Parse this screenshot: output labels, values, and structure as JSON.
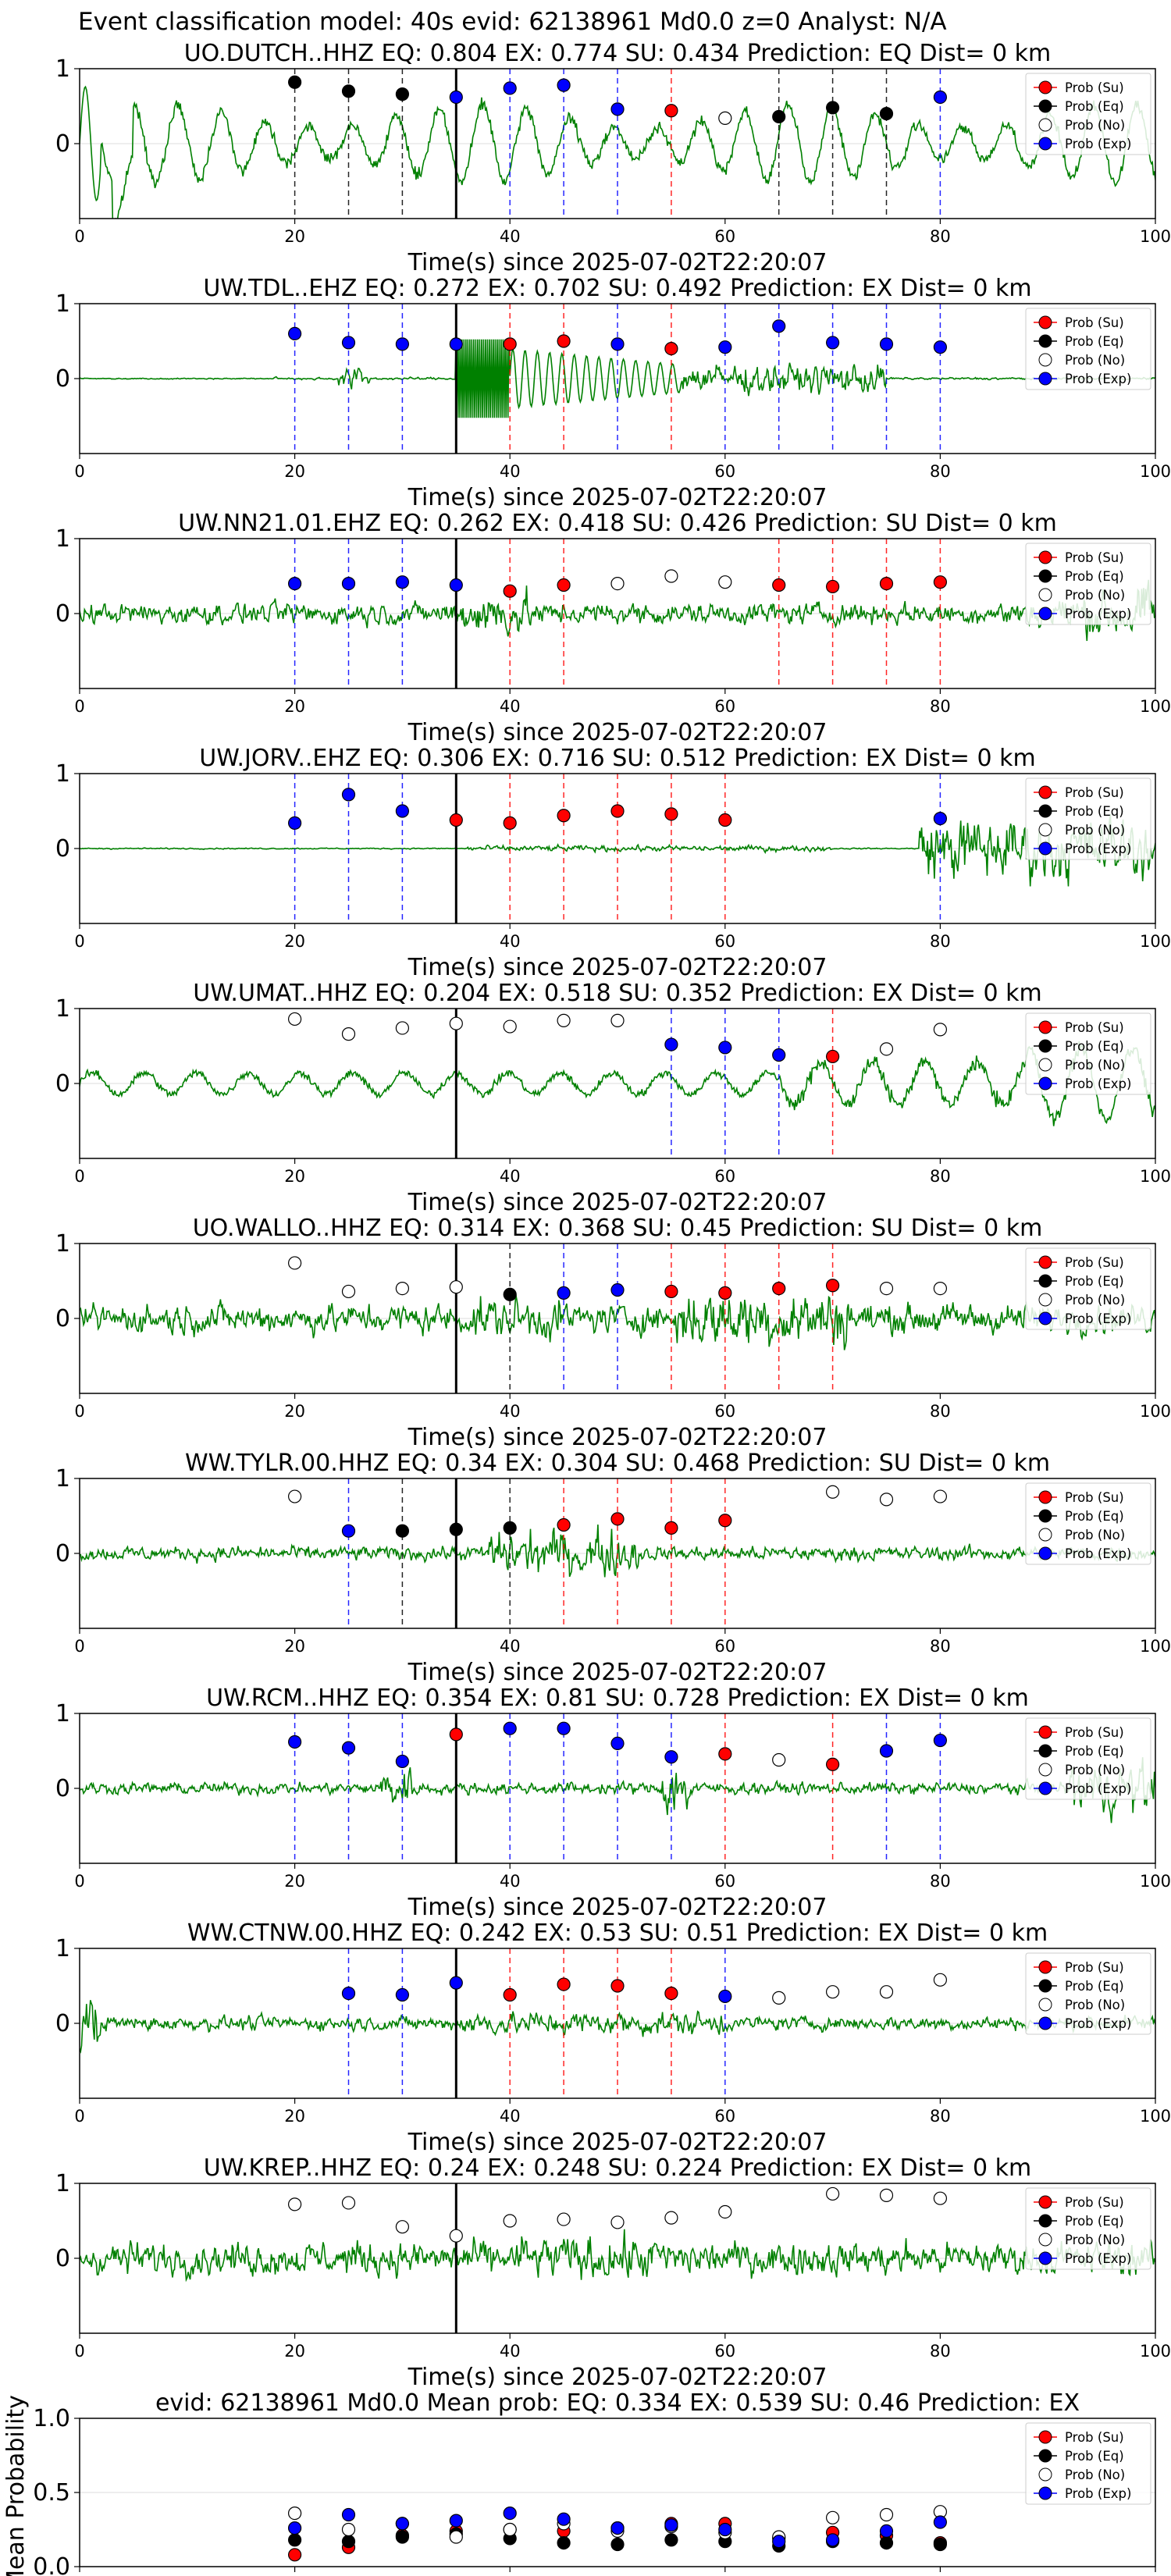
{
  "suptitle": "Event classification model: 40s evid: 62138961 Md0.0 z=0 Analyst: N/A",
  "colors": {
    "waveform": "#008000",
    "su": "#ff0000",
    "eq": "#000000",
    "no": "#ffffff",
    "exp": "#0000ff",
    "pick_line": "#000000",
    "grid": "#dddddd"
  },
  "legend_labels": [
    "Prob (Su)",
    "Prob (Eq)",
    "Prob (No)",
    "Prob (Exp)"
  ],
  "chart_data": [
    {
      "type": "line",
      "title": "UO.DUTCH..HHZ   EQ: 0.804  EX: 0.774  SU: 0.434   Prediction: EQ    Dist= 0 km",
      "xlabel": "Time(s) since 2025-07-02T22:20:07",
      "ylabel": "",
      "xlim": [
        0,
        100
      ],
      "ylim": [
        -1,
        1
      ],
      "xticks": [
        "0",
        "20",
        "40",
        "60",
        "80",
        "100"
      ],
      "yticks": [
        "1",
        "0"
      ],
      "pick_time": 35,
      "waveform_style": "low",
      "legend_position": "upper right",
      "points": [
        {
          "x": 20,
          "y": 0.82,
          "class": "eq"
        },
        {
          "x": 25,
          "y": 0.7,
          "class": "eq"
        },
        {
          "x": 30,
          "y": 0.66,
          "class": "eq"
        },
        {
          "x": 35,
          "y": 0.62,
          "class": "exp"
        },
        {
          "x": 40,
          "y": 0.74,
          "class": "exp"
        },
        {
          "x": 45,
          "y": 0.78,
          "class": "exp"
        },
        {
          "x": 50,
          "y": 0.46,
          "class": "exp"
        },
        {
          "x": 55,
          "y": 0.44,
          "class": "su"
        },
        {
          "x": 60,
          "y": 0.34,
          "class": "no"
        },
        {
          "x": 65,
          "y": 0.36,
          "class": "eq"
        },
        {
          "x": 70,
          "y": 0.48,
          "class": "eq"
        },
        {
          "x": 75,
          "y": 0.4,
          "class": "eq"
        },
        {
          "x": 80,
          "y": 0.62,
          "class": "exp"
        }
      ]
    },
    {
      "type": "line",
      "title": "UW.TDL..EHZ   EQ: 0.272  EX: 0.702  SU: 0.492   Prediction: EX    Dist= 0 km",
      "xlabel": "Time(s) since 2025-07-02T22:20:07",
      "ylabel": "",
      "xlim": [
        0,
        100
      ],
      "ylim": [
        -1,
        1
      ],
      "xticks": [
        "0",
        "20",
        "40",
        "60",
        "80",
        "100"
      ],
      "yticks": [
        "1",
        "0"
      ],
      "pick_time": 35,
      "waveform_style": "event",
      "legend_position": "upper right",
      "points": [
        {
          "x": 20,
          "y": 0.6,
          "class": "exp"
        },
        {
          "x": 25,
          "y": 0.48,
          "class": "exp"
        },
        {
          "x": 30,
          "y": 0.46,
          "class": "exp"
        },
        {
          "x": 35,
          "y": 0.46,
          "class": "exp"
        },
        {
          "x": 40,
          "y": 0.46,
          "class": "su"
        },
        {
          "x": 45,
          "y": 0.5,
          "class": "su"
        },
        {
          "x": 50,
          "y": 0.46,
          "class": "exp"
        },
        {
          "x": 55,
          "y": 0.4,
          "class": "su"
        },
        {
          "x": 60,
          "y": 0.42,
          "class": "exp"
        },
        {
          "x": 65,
          "y": 0.7,
          "class": "exp"
        },
        {
          "x": 70,
          "y": 0.48,
          "class": "exp"
        },
        {
          "x": 75,
          "y": 0.46,
          "class": "exp"
        },
        {
          "x": 80,
          "y": 0.42,
          "class": "exp"
        }
      ]
    },
    {
      "type": "line",
      "title": "UW.NN21.01.EHZ   EQ: 0.262  EX: 0.418  SU: 0.426   Prediction: SU    Dist= 0 km",
      "xlabel": "Time(s) since 2025-07-02T22:20:07",
      "ylabel": "",
      "xlim": [
        0,
        100
      ],
      "ylim": [
        -1,
        1
      ],
      "xticks": [
        "0",
        "20",
        "40",
        "60",
        "80",
        "100"
      ],
      "yticks": [
        "1",
        "0"
      ],
      "pick_time": 35,
      "waveform_style": "noise",
      "legend_position": "upper right",
      "points": [
        {
          "x": 20,
          "y": 0.4,
          "class": "exp"
        },
        {
          "x": 25,
          "y": 0.4,
          "class": "exp"
        },
        {
          "x": 30,
          "y": 0.42,
          "class": "exp"
        },
        {
          "x": 35,
          "y": 0.38,
          "class": "exp"
        },
        {
          "x": 40,
          "y": 0.3,
          "class": "su"
        },
        {
          "x": 45,
          "y": 0.38,
          "class": "su"
        },
        {
          "x": 50,
          "y": 0.4,
          "class": "no"
        },
        {
          "x": 55,
          "y": 0.5,
          "class": "no"
        },
        {
          "x": 60,
          "y": 0.42,
          "class": "no"
        },
        {
          "x": 65,
          "y": 0.38,
          "class": "su"
        },
        {
          "x": 70,
          "y": 0.36,
          "class": "su"
        },
        {
          "x": 75,
          "y": 0.4,
          "class": "su"
        },
        {
          "x": 80,
          "y": 0.42,
          "class": "su"
        }
      ]
    },
    {
      "type": "line",
      "title": "UW.JORV..EHZ   EQ: 0.306  EX: 0.716  SU: 0.512   Prediction: EX    Dist= 0 km",
      "xlabel": "Time(s) since 2025-07-02T22:20:07",
      "ylabel": "",
      "xlim": [
        0,
        100
      ],
      "ylim": [
        -1,
        1
      ],
      "xticks": [
        "0",
        "20",
        "40",
        "60",
        "80",
        "100"
      ],
      "yticks": [
        "1",
        "0"
      ],
      "pick_time": 35,
      "waveform_style": "quiet_burst",
      "legend_position": "upper right",
      "points": [
        {
          "x": 20,
          "y": 0.34,
          "class": "exp"
        },
        {
          "x": 25,
          "y": 0.72,
          "class": "exp"
        },
        {
          "x": 30,
          "y": 0.5,
          "class": "exp"
        },
        {
          "x": 35,
          "y": 0.38,
          "class": "su"
        },
        {
          "x": 40,
          "y": 0.34,
          "class": "su"
        },
        {
          "x": 45,
          "y": 0.44,
          "class": "su"
        },
        {
          "x": 50,
          "y": 0.5,
          "class": "su"
        },
        {
          "x": 55,
          "y": 0.46,
          "class": "su"
        },
        {
          "x": 60,
          "y": 0.38,
          "class": "su"
        },
        {
          "x": 80,
          "y": 0.4,
          "class": "exp"
        }
      ]
    },
    {
      "type": "line",
      "title": "UW.UMAT..HHZ   EQ: 0.204  EX: 0.518  SU: 0.352   Prediction: EX    Dist= 0 km",
      "xlabel": "Time(s) since 2025-07-02T22:20:07",
      "ylabel": "",
      "xlim": [
        0,
        100
      ],
      "ylim": [
        -1,
        1
      ],
      "xticks": [
        "0",
        "20",
        "40",
        "60",
        "80",
        "100"
      ],
      "yticks": [
        "1",
        "0"
      ],
      "pick_time": 35,
      "waveform_style": "wavy",
      "legend_position": "upper right",
      "points": [
        {
          "x": 20,
          "y": 0.86,
          "class": "no"
        },
        {
          "x": 25,
          "y": 0.66,
          "class": "no"
        },
        {
          "x": 30,
          "y": 0.74,
          "class": "no"
        },
        {
          "x": 35,
          "y": 0.8,
          "class": "no"
        },
        {
          "x": 40,
          "y": 0.76,
          "class": "no"
        },
        {
          "x": 45,
          "y": 0.84,
          "class": "no"
        },
        {
          "x": 50,
          "y": 0.84,
          "class": "no"
        },
        {
          "x": 55,
          "y": 0.52,
          "class": "exp"
        },
        {
          "x": 60,
          "y": 0.48,
          "class": "exp"
        },
        {
          "x": 65,
          "y": 0.38,
          "class": "exp"
        },
        {
          "x": 70,
          "y": 0.36,
          "class": "su"
        },
        {
          "x": 75,
          "y": 0.46,
          "class": "no"
        },
        {
          "x": 80,
          "y": 0.72,
          "class": "no"
        }
      ]
    },
    {
      "type": "line",
      "title": "UO.WALLO..HHZ   EQ: 0.314  EX: 0.368  SU: 0.45   Prediction: SU    Dist= 0 km",
      "xlabel": "Time(s) since 2025-07-02T22:20:07",
      "ylabel": "",
      "xlim": [
        0,
        100
      ],
      "ylim": [
        -1,
        1
      ],
      "xticks": [
        "0",
        "20",
        "40",
        "60",
        "80",
        "100"
      ],
      "yticks": [
        "1",
        "0"
      ],
      "pick_time": 35,
      "waveform_style": "noisy_mid",
      "legend_position": "upper right",
      "points": [
        {
          "x": 20,
          "y": 0.74,
          "class": "no"
        },
        {
          "x": 25,
          "y": 0.36,
          "class": "no"
        },
        {
          "x": 30,
          "y": 0.4,
          "class": "no"
        },
        {
          "x": 35,
          "y": 0.42,
          "class": "no"
        },
        {
          "x": 40,
          "y": 0.32,
          "class": "eq"
        },
        {
          "x": 45,
          "y": 0.34,
          "class": "exp"
        },
        {
          "x": 50,
          "y": 0.38,
          "class": "exp"
        },
        {
          "x": 55,
          "y": 0.36,
          "class": "su"
        },
        {
          "x": 60,
          "y": 0.34,
          "class": "su"
        },
        {
          "x": 65,
          "y": 0.4,
          "class": "su"
        },
        {
          "x": 70,
          "y": 0.44,
          "class": "su"
        },
        {
          "x": 75,
          "y": 0.4,
          "class": "no"
        },
        {
          "x": 80,
          "y": 0.4,
          "class": "no"
        }
      ]
    },
    {
      "type": "line",
      "title": "WW.TYLR.00.HHZ   EQ: 0.34  EX: 0.304  SU: 0.468   Prediction: SU    Dist= 0 km",
      "xlabel": "Time(s) since 2025-07-02T22:20:07",
      "ylabel": "",
      "xlim": [
        0,
        100
      ],
      "ylim": [
        -1,
        1
      ],
      "xticks": [
        "0",
        "20",
        "40",
        "60",
        "80",
        "100"
      ],
      "yticks": [
        "1",
        "0"
      ],
      "pick_time": 35,
      "waveform_style": "noise_event",
      "legend_position": "upper right",
      "points": [
        {
          "x": 20,
          "y": 0.76,
          "class": "no"
        },
        {
          "x": 25,
          "y": 0.3,
          "class": "exp"
        },
        {
          "x": 30,
          "y": 0.3,
          "class": "eq"
        },
        {
          "x": 35,
          "y": 0.32,
          "class": "eq"
        },
        {
          "x": 40,
          "y": 0.34,
          "class": "eq"
        },
        {
          "x": 45,
          "y": 0.38,
          "class": "su"
        },
        {
          "x": 50,
          "y": 0.46,
          "class": "su"
        },
        {
          "x": 55,
          "y": 0.34,
          "class": "su"
        },
        {
          "x": 60,
          "y": 0.44,
          "class": "su"
        },
        {
          "x": 70,
          "y": 0.82,
          "class": "no"
        },
        {
          "x": 75,
          "y": 0.72,
          "class": "no"
        },
        {
          "x": 80,
          "y": 0.76,
          "class": "no"
        }
      ]
    },
    {
      "type": "line",
      "title": "UW.RCM..HHZ   EQ: 0.354  EX: 0.81  SU: 0.728   Prediction: EX    Dist= 0 km",
      "xlabel": "Time(s) since 2025-07-02T22:20:07",
      "ylabel": "",
      "xlim": [
        0,
        100
      ],
      "ylim": [
        -1,
        1
      ],
      "xticks": [
        "0",
        "20",
        "40",
        "60",
        "80",
        "100"
      ],
      "yticks": [
        "1",
        "0"
      ],
      "pick_time": 35,
      "waveform_style": "noise_spikes",
      "legend_position": "upper right",
      "points": [
        {
          "x": 20,
          "y": 0.62,
          "class": "exp"
        },
        {
          "x": 25,
          "y": 0.54,
          "class": "exp"
        },
        {
          "x": 30,
          "y": 0.36,
          "class": "exp"
        },
        {
          "x": 35,
          "y": 0.72,
          "class": "su"
        },
        {
          "x": 40,
          "y": 0.8,
          "class": "exp"
        },
        {
          "x": 45,
          "y": 0.8,
          "class": "exp"
        },
        {
          "x": 50,
          "y": 0.6,
          "class": "exp"
        },
        {
          "x": 55,
          "y": 0.42,
          "class": "exp"
        },
        {
          "x": 60,
          "y": 0.46,
          "class": "su"
        },
        {
          "x": 65,
          "y": 0.38,
          "class": "no"
        },
        {
          "x": 70,
          "y": 0.32,
          "class": "su"
        },
        {
          "x": 75,
          "y": 0.5,
          "class": "exp"
        },
        {
          "x": 80,
          "y": 0.64,
          "class": "exp"
        }
      ]
    },
    {
      "type": "line",
      "title": "WW.CTNW.00.HHZ   EQ: 0.242  EX: 0.53  SU: 0.51   Prediction: EX    Dist= 0 km",
      "xlabel": "Time(s) since 2025-07-02T22:20:07",
      "ylabel": "",
      "xlim": [
        0,
        100
      ],
      "ylim": [
        -1,
        1
      ],
      "xticks": [
        "0",
        "20",
        "40",
        "60",
        "80",
        "100"
      ],
      "yticks": [
        "1",
        "0"
      ],
      "pick_time": 35,
      "waveform_style": "noise_small",
      "legend_position": "upper right",
      "points": [
        {
          "x": 25,
          "y": 0.4,
          "class": "exp"
        },
        {
          "x": 30,
          "y": 0.38,
          "class": "exp"
        },
        {
          "x": 35,
          "y": 0.54,
          "class": "exp"
        },
        {
          "x": 40,
          "y": 0.38,
          "class": "su"
        },
        {
          "x": 45,
          "y": 0.52,
          "class": "su"
        },
        {
          "x": 50,
          "y": 0.5,
          "class": "su"
        },
        {
          "x": 55,
          "y": 0.4,
          "class": "su"
        },
        {
          "x": 60,
          "y": 0.36,
          "class": "exp"
        },
        {
          "x": 65,
          "y": 0.34,
          "class": "no"
        },
        {
          "x": 70,
          "y": 0.42,
          "class": "no"
        },
        {
          "x": 75,
          "y": 0.42,
          "class": "no"
        },
        {
          "x": 80,
          "y": 0.58,
          "class": "no"
        }
      ]
    },
    {
      "type": "line",
      "title": "UW.KREP..HHZ   EQ: 0.24  EX: 0.248  SU: 0.224   Prediction: EX    Dist= 0 km",
      "xlabel": "Time(s) since 2025-07-02T22:20:07",
      "ylabel": "",
      "xlim": [
        0,
        100
      ],
      "ylim": [
        -1,
        1
      ],
      "xticks": [
        "0",
        "20",
        "40",
        "60",
        "80",
        "100"
      ],
      "yticks": [
        "1",
        "0"
      ],
      "pick_time": 35,
      "waveform_style": "noise_large",
      "legend_position": "upper right",
      "points": [
        {
          "x": 20,
          "y": 0.72,
          "class": "no"
        },
        {
          "x": 25,
          "y": 0.74,
          "class": "no"
        },
        {
          "x": 30,
          "y": 0.42,
          "class": "no"
        },
        {
          "x": 35,
          "y": 0.3,
          "class": "no"
        },
        {
          "x": 40,
          "y": 0.5,
          "class": "no"
        },
        {
          "x": 45,
          "y": 0.52,
          "class": "no"
        },
        {
          "x": 50,
          "y": 0.48,
          "class": "no"
        },
        {
          "x": 55,
          "y": 0.54,
          "class": "no"
        },
        {
          "x": 60,
          "y": 0.62,
          "class": "no"
        },
        {
          "x": 70,
          "y": 0.86,
          "class": "no"
        },
        {
          "x": 75,
          "y": 0.84,
          "class": "no"
        },
        {
          "x": 80,
          "y": 0.8,
          "class": "no"
        }
      ]
    },
    {
      "type": "scatter",
      "title": "evid: 62138961  Md0.0   Mean prob:    EQ: 0.334  EX: 0.539  SU: 0.46   Prediction: EX",
      "xlabel": "",
      "ylabel": "Mean Probability",
      "xlim": [
        0,
        100
      ],
      "ylim": [
        0,
        1
      ],
      "xticks": [
        "0",
        "20",
        "40",
        "60",
        "80",
        "100"
      ],
      "yticks": [
        "1.0",
        "0.5",
        "0.0"
      ],
      "legend_position": "upper right",
      "x": [
        20,
        25,
        30,
        35,
        40,
        45,
        50,
        55,
        60,
        65,
        70,
        75,
        80
      ],
      "series": [
        {
          "name": "Prob (Su)",
          "class": "su",
          "values": [
            0.08,
            0.13,
            0.21,
            0.24,
            0.25,
            0.24,
            0.26,
            0.29,
            0.29,
            0.19,
            0.23,
            0.21,
            0.16
          ]
        },
        {
          "name": "Prob (Eq)",
          "class": "eq",
          "values": [
            0.18,
            0.17,
            0.2,
            0.22,
            0.19,
            0.16,
            0.15,
            0.18,
            0.17,
            0.14,
            0.17,
            0.16,
            0.15
          ]
        },
        {
          "name": "Prob (No)",
          "class": "no",
          "values": [
            0.36,
            0.25,
            0.29,
            0.2,
            0.25,
            0.29,
            0.24,
            0.27,
            0.23,
            0.2,
            0.33,
            0.35,
            0.37
          ]
        },
        {
          "name": "Prob (Exp)",
          "class": "exp",
          "values": [
            0.26,
            0.35,
            0.29,
            0.31,
            0.36,
            0.32,
            0.26,
            0.28,
            0.25,
            0.17,
            0.18,
            0.24,
            0.3
          ]
        }
      ]
    }
  ]
}
